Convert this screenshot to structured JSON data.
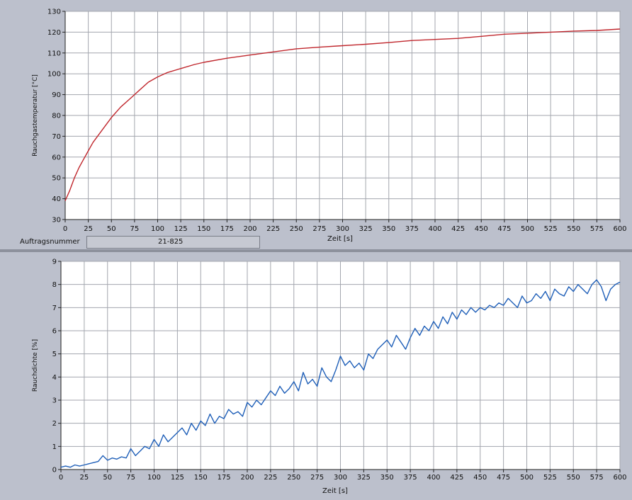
{
  "order": {
    "label": "Auftragsnummer",
    "value": "21-825"
  },
  "chart_data": [
    {
      "type": "line",
      "title": "",
      "xlabel": "Zeit [s]",
      "ylabel": "Rauchgastemperatur [°C]",
      "xlim": [
        0,
        600
      ],
      "ylim": [
        30,
        130
      ],
      "xticks": [
        0,
        25,
        50,
        75,
        100,
        125,
        150,
        175,
        200,
        225,
        250,
        275,
        300,
        325,
        350,
        375,
        400,
        425,
        450,
        475,
        500,
        525,
        550,
        575,
        600
      ],
      "yticks": [
        30,
        40,
        50,
        60,
        70,
        80,
        90,
        100,
        110,
        120,
        130
      ],
      "grid": true,
      "series": [
        {
          "color": "#c0272d",
          "x": [
            0,
            5,
            10,
            15,
            20,
            25,
            30,
            40,
            50,
            60,
            70,
            75,
            80,
            90,
            100,
            110,
            125,
            140,
            150,
            175,
            200,
            225,
            250,
            275,
            300,
            325,
            350,
            375,
            400,
            425,
            450,
            475,
            500,
            525,
            550,
            575,
            600
          ],
          "y": [
            39,
            44,
            50,
            55,
            59,
            63,
            67,
            73,
            79,
            84,
            88,
            90,
            92,
            96,
            98.5,
            100.5,
            102.5,
            104.5,
            105.5,
            107.5,
            109,
            110.5,
            112,
            112.8,
            113.5,
            114.2,
            115,
            116,
            116.5,
            117,
            118,
            119,
            119.5,
            120,
            120.5,
            120.8,
            121.5
          ]
        }
      ]
    },
    {
      "type": "line",
      "title": "",
      "xlabel": "Zeit [s]",
      "ylabel": "Rauchdichte [%]",
      "xlim": [
        0,
        600
      ],
      "ylim": [
        0,
        9
      ],
      "xticks": [
        0,
        25,
        50,
        75,
        100,
        125,
        150,
        175,
        200,
        225,
        250,
        275,
        300,
        325,
        350,
        375,
        400,
        425,
        450,
        475,
        500,
        525,
        550,
        575,
        600
      ],
      "yticks": [
        0,
        1,
        2,
        3,
        4,
        5,
        6,
        7,
        8,
        9
      ],
      "grid": true,
      "series": [
        {
          "color": "#1f5fb8",
          "x": [
            0,
            5,
            10,
            15,
            20,
            25,
            30,
            35,
            40,
            45,
            50,
            55,
            60,
            65,
            70,
            75,
            80,
            85,
            90,
            95,
            100,
            105,
            110,
            115,
            120,
            125,
            130,
            135,
            140,
            145,
            150,
            155,
            160,
            165,
            170,
            175,
            180,
            185,
            190,
            195,
            200,
            205,
            210,
            215,
            220,
            225,
            230,
            235,
            240,
            245,
            250,
            255,
            260,
            265,
            270,
            275,
            280,
            285,
            290,
            295,
            300,
            305,
            310,
            315,
            320,
            325,
            330,
            335,
            340,
            345,
            350,
            355,
            360,
            365,
            370,
            375,
            380,
            385,
            390,
            395,
            400,
            405,
            410,
            415,
            420,
            425,
            430,
            435,
            440,
            445,
            450,
            455,
            460,
            465,
            470,
            475,
            480,
            485,
            490,
            495,
            500,
            505,
            510,
            515,
            520,
            525,
            530,
            535,
            540,
            545,
            550,
            555,
            560,
            565,
            570,
            575,
            580,
            585,
            590,
            595,
            600
          ],
          "y": [
            0.1,
            0.15,
            0.1,
            0.2,
            0.15,
            0.2,
            0.25,
            0.3,
            0.35,
            0.6,
            0.4,
            0.5,
            0.45,
            0.55,
            0.5,
            0.9,
            0.6,
            0.8,
            1.0,
            0.9,
            1.3,
            1.0,
            1.5,
            1.2,
            1.4,
            1.6,
            1.8,
            1.5,
            2.0,
            1.7,
            2.1,
            1.9,
            2.4,
            2.0,
            2.3,
            2.2,
            2.6,
            2.4,
            2.5,
            2.3,
            2.9,
            2.7,
            3.0,
            2.8,
            3.1,
            3.4,
            3.2,
            3.6,
            3.3,
            3.5,
            3.8,
            3.4,
            4.2,
            3.7,
            3.9,
            3.6,
            4.4,
            4.0,
            3.8,
            4.3,
            4.9,
            4.5,
            4.7,
            4.4,
            4.6,
            4.3,
            5.0,
            4.8,
            5.2,
            5.4,
            5.6,
            5.3,
            5.8,
            5.5,
            5.2,
            5.7,
            6.1,
            5.8,
            6.2,
            6.0,
            6.4,
            6.1,
            6.6,
            6.3,
            6.8,
            6.5,
            6.9,
            6.7,
            7.0,
            6.8,
            7.0,
            6.9,
            7.1,
            7.0,
            7.2,
            7.1,
            7.4,
            7.2,
            7.0,
            7.5,
            7.2,
            7.3,
            7.6,
            7.4,
            7.7,
            7.3,
            7.8,
            7.6,
            7.5,
            7.9,
            7.7,
            8.0,
            7.8,
            7.6,
            8.0,
            8.2,
            7.9,
            7.3,
            7.8,
            8.0,
            8.1
          ]
        }
      ]
    }
  ]
}
